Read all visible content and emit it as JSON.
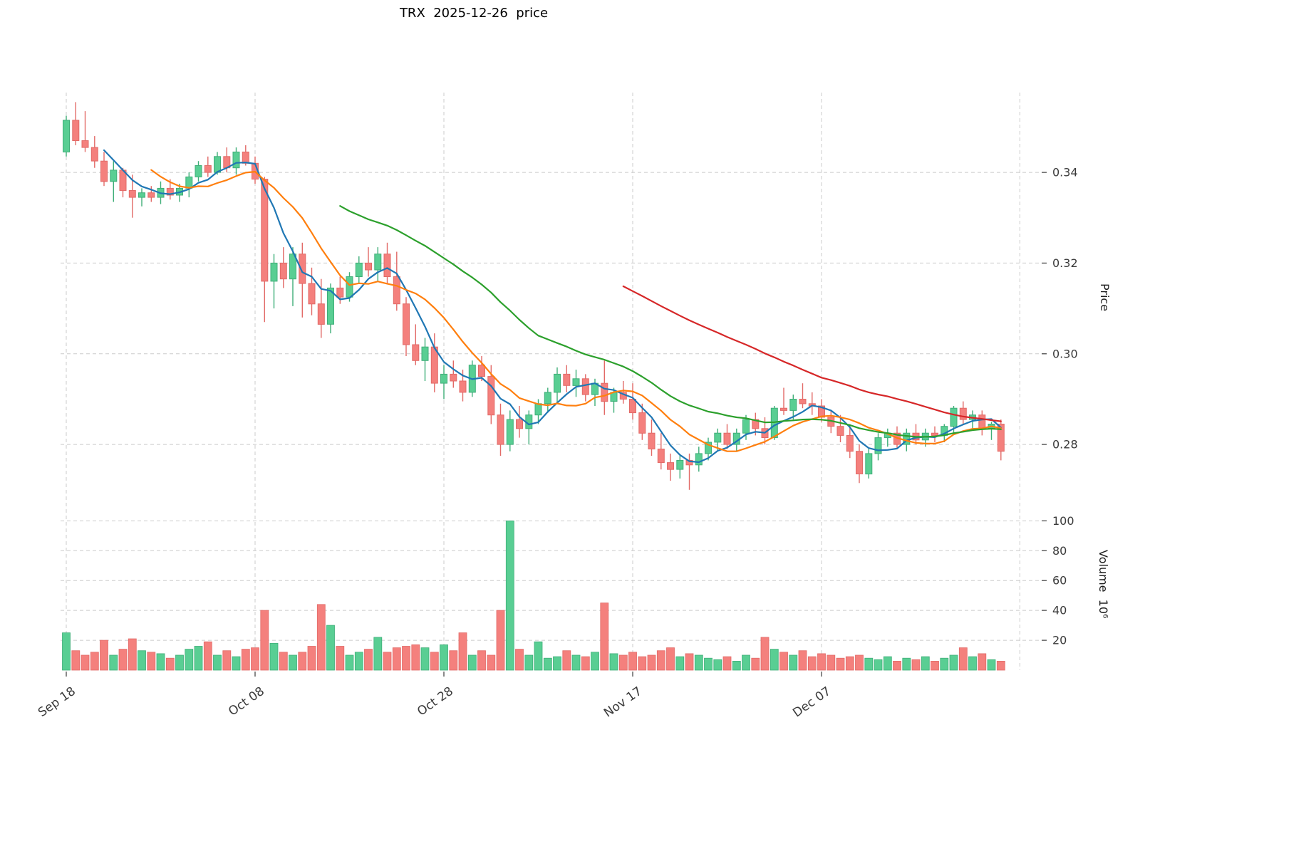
{
  "title": "TRX  2025-12-26  price",
  "axes": {
    "price_label": "Price",
    "volume_label": "Volume  10⁶",
    "price_ticks": [
      "0.34",
      "0.32",
      "0.30",
      "0.28"
    ],
    "price_tick_values": [
      0.34,
      0.32,
      0.3,
      0.28
    ],
    "volume_ticks": [
      20,
      40,
      60,
      80,
      100
    ],
    "x_tick_labels": [
      "Sep 18",
      "Oct 08",
      "Oct 28",
      "Nov 17",
      "Dec 07"
    ],
    "x_tick_indices": [
      0,
      20,
      40,
      60,
      80
    ]
  },
  "style": {
    "up_color": "#59ce93",
    "up_edge": "#3fae78",
    "down_color": "#f4807d",
    "down_edge": "#e26a67",
    "grid_color": "#cbcbcb"
  },
  "chart_data": {
    "type": "candlestick",
    "symbol": "TRX",
    "as_of_date": "2025-12-26",
    "start_tick": "Sep 18",
    "n_days": 100,
    "price_range": [
      0.2684,
      0.3576
    ],
    "volume_range": [
      0,
      114
    ],
    "legend_position": "none",
    "grid": "dashed",
    "open": [
      0.3445,
      0.3515,
      0.347,
      0.3455,
      0.3425,
      0.338,
      0.3405,
      0.336,
      0.3345,
      0.3355,
      0.3345,
      0.3365,
      0.335,
      0.3365,
      0.339,
      0.3415,
      0.34,
      0.3435,
      0.341,
      0.3445,
      0.342,
      0.3385,
      0.316,
      0.32,
      0.3165,
      0.322,
      0.3155,
      0.311,
      0.3065,
      0.3145,
      0.3125,
      0.317,
      0.32,
      0.3185,
      0.322,
      0.317,
      0.311,
      0.302,
      0.2985,
      0.3015,
      0.2935,
      0.2955,
      0.294,
      0.2915,
      0.2975,
      0.295,
      0.2865,
      0.28,
      0.2855,
      0.2835,
      0.2865,
      0.289,
      0.2915,
      0.2955,
      0.293,
      0.2945,
      0.291,
      0.2935,
      0.2895,
      0.2915,
      0.29,
      0.287,
      0.2825,
      0.279,
      0.276,
      0.2745,
      0.2765,
      0.2755,
      0.278,
      0.2805,
      0.2825,
      0.28,
      0.2825,
      0.2855,
      0.2835,
      0.2815,
      0.288,
      0.2875,
      0.29,
      0.289,
      0.2885,
      0.286,
      0.284,
      0.282,
      0.2785,
      0.2735,
      0.278,
      0.2815,
      0.2825,
      0.28,
      0.2825,
      0.281,
      0.2825,
      0.282,
      0.284,
      0.288,
      0.2855,
      0.2865,
      0.2835,
      0.2845
    ],
    "high": [
      0.3525,
      0.3555,
      0.3535,
      0.348,
      0.3445,
      0.3425,
      0.341,
      0.3395,
      0.3365,
      0.337,
      0.338,
      0.3385,
      0.3375,
      0.34,
      0.3425,
      0.3435,
      0.3445,
      0.3455,
      0.3455,
      0.346,
      0.3435,
      0.339,
      0.322,
      0.3235,
      0.3235,
      0.3245,
      0.319,
      0.3165,
      0.3155,
      0.317,
      0.318,
      0.3215,
      0.3235,
      0.3235,
      0.3245,
      0.3225,
      0.3125,
      0.3065,
      0.3035,
      0.3045,
      0.2975,
      0.2985,
      0.2965,
      0.2985,
      0.2995,
      0.2975,
      0.289,
      0.2875,
      0.2885,
      0.2875,
      0.29,
      0.2925,
      0.297,
      0.2975,
      0.2965,
      0.2955,
      0.2945,
      0.2985,
      0.2925,
      0.294,
      0.2935,
      0.289,
      0.2855,
      0.2825,
      0.278,
      0.2775,
      0.278,
      0.2795,
      0.2815,
      0.2835,
      0.2845,
      0.2835,
      0.2865,
      0.287,
      0.286,
      0.2885,
      0.2925,
      0.291,
      0.2935,
      0.2915,
      0.29,
      0.2875,
      0.2865,
      0.2845,
      0.28,
      0.279,
      0.2825,
      0.2835,
      0.284,
      0.2835,
      0.2845,
      0.2835,
      0.284,
      0.2845,
      0.2885,
      0.2895,
      0.2875,
      0.2875,
      0.285,
      0.2855
    ],
    "low": [
      0.3435,
      0.346,
      0.3445,
      0.341,
      0.337,
      0.3335,
      0.3345,
      0.33,
      0.3325,
      0.3335,
      0.333,
      0.334,
      0.3335,
      0.3345,
      0.338,
      0.339,
      0.3395,
      0.34,
      0.3395,
      0.3415,
      0.3375,
      0.307,
      0.31,
      0.3145,
      0.3105,
      0.308,
      0.3085,
      0.3035,
      0.3045,
      0.311,
      0.3115,
      0.3155,
      0.317,
      0.316,
      0.3155,
      0.3095,
      0.2995,
      0.2975,
      0.294,
      0.2915,
      0.29,
      0.2925,
      0.2895,
      0.2905,
      0.294,
      0.2845,
      0.2775,
      0.2785,
      0.2815,
      0.28,
      0.2845,
      0.287,
      0.289,
      0.2915,
      0.2905,
      0.2895,
      0.2885,
      0.2865,
      0.287,
      0.289,
      0.2855,
      0.281,
      0.2775,
      0.2745,
      0.272,
      0.2725,
      0.27,
      0.274,
      0.2765,
      0.2785,
      0.279,
      0.2785,
      0.281,
      0.282,
      0.28,
      0.281,
      0.2865,
      0.2855,
      0.288,
      0.2865,
      0.285,
      0.2825,
      0.2805,
      0.277,
      0.2715,
      0.2725,
      0.2765,
      0.2795,
      0.279,
      0.2785,
      0.28,
      0.2795,
      0.2805,
      0.2805,
      0.2825,
      0.2845,
      0.2835,
      0.282,
      0.281,
      0.2765
    ],
    "close": [
      0.3515,
      0.347,
      0.3455,
      0.3425,
      0.338,
      0.3405,
      0.336,
      0.3345,
      0.3355,
      0.3345,
      0.3365,
      0.335,
      0.3365,
      0.339,
      0.3415,
      0.34,
      0.3435,
      0.341,
      0.3445,
      0.342,
      0.3385,
      0.316,
      0.32,
      0.3165,
      0.322,
      0.3155,
      0.311,
      0.3065,
      0.3145,
      0.3125,
      0.317,
      0.32,
      0.3185,
      0.322,
      0.317,
      0.311,
      0.302,
      0.2985,
      0.3015,
      0.2935,
      0.2955,
      0.294,
      0.2915,
      0.2975,
      0.295,
      0.2865,
      0.28,
      0.2855,
      0.2835,
      0.2865,
      0.289,
      0.2915,
      0.2955,
      0.293,
      0.2945,
      0.291,
      0.2935,
      0.2895,
      0.2915,
      0.29,
      0.287,
      0.2825,
      0.279,
      0.276,
      0.2745,
      0.2765,
      0.2755,
      0.278,
      0.2805,
      0.2825,
      0.28,
      0.2825,
      0.2855,
      0.2835,
      0.2815,
      0.288,
      0.2875,
      0.29,
      0.289,
      0.2885,
      0.286,
      0.284,
      0.282,
      0.2785,
      0.2735,
      0.278,
      0.2815,
      0.2825,
      0.28,
      0.2825,
      0.281,
      0.2825,
      0.282,
      0.284,
      0.288,
      0.2855,
      0.2865,
      0.2835,
      0.2845,
      0.2785
    ],
    "volume_millions": [
      25,
      13,
      10,
      12,
      20,
      10,
      14,
      21,
      13,
      12,
      11,
      8,
      10,
      14,
      16,
      19,
      10,
      13,
      9,
      14,
      15,
      40,
      18,
      12,
      10,
      12,
      16,
      44,
      30,
      16,
      10,
      12,
      14,
      22,
      12,
      15,
      16,
      17,
      15,
      12,
      17,
      13,
      25,
      10,
      13,
      10,
      40,
      100,
      14,
      10,
      19,
      8,
      9,
      13,
      10,
      9,
      12,
      45,
      11,
      10,
      12,
      9,
      10,
      13,
      15,
      9,
      11,
      10,
      8,
      7,
      9,
      6,
      10,
      8,
      22,
      14,
      12,
      10,
      13,
      9,
      11,
      10,
      8,
      9,
      10,
      8,
      7,
      9,
      6,
      8,
      7,
      9,
      6,
      8,
      10,
      15,
      9,
      11,
      7,
      6
    ],
    "moving_averages": [
      {
        "window": 5,
        "color": "#1f77b4"
      },
      {
        "window": 10,
        "color": "#ff7f0e"
      },
      {
        "window": 30,
        "color": "#2ca02c"
      },
      {
        "window": 60,
        "color": "#d62728"
      }
    ]
  }
}
